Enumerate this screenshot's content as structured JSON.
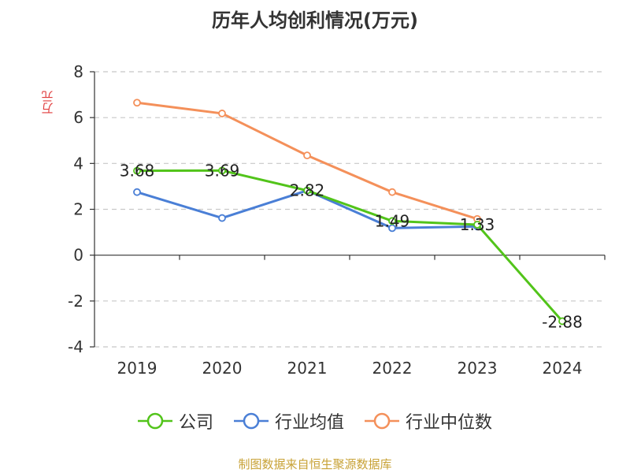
{
  "chart_data": {
    "type": "line",
    "title": "历年人均创利情况(万元)",
    "ylabel": "万元",
    "xlabel": "",
    "categories": [
      "2019",
      "2020",
      "2021",
      "2022",
      "2023",
      "2024"
    ],
    "ylim": [
      -4,
      8
    ],
    "yticks": [
      -4,
      -2,
      0,
      2,
      4,
      6,
      8
    ],
    "grid": true,
    "legend_position": "bottom",
    "series": [
      {
        "name": "公司",
        "color": "#52c41a",
        "values": [
          3.68,
          3.69,
          2.82,
          1.49,
          1.33,
          -2.88
        ],
        "labels": [
          "3.68",
          "3.69",
          "2.82",
          "1.49",
          "1.33",
          "-2.88"
        ]
      },
      {
        "name": "行业均值",
        "color": "#4a7fd6",
        "values": [
          2.75,
          1.62,
          2.82,
          1.18,
          1.25,
          null
        ]
      },
      {
        "name": "行业中位数",
        "color": "#f4905a",
        "values": [
          6.65,
          6.18,
          4.35,
          2.75,
          1.58,
          null
        ]
      }
    ]
  },
  "source": "制图数据来自恒生聚源数据库"
}
